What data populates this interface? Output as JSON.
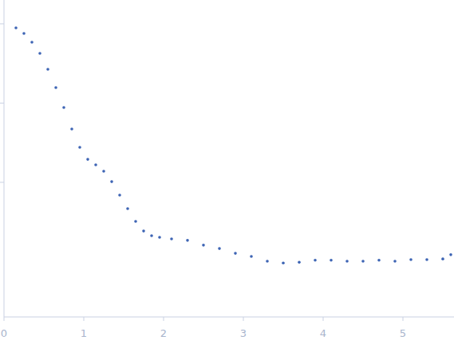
{
  "chart_data": {
    "type": "scatter",
    "x": [
      0.15,
      0.25,
      0.35,
      0.45,
      0.55,
      0.65,
      0.75,
      0.85,
      0.95,
      1.05,
      1.15,
      1.25,
      1.35,
      1.45,
      1.55,
      1.65,
      1.75,
      1.85,
      1.95,
      2.1,
      2.3,
      2.5,
      2.7,
      2.9,
      3.1,
      3.3,
      3.5,
      3.7,
      3.9,
      4.1,
      4.3,
      4.5,
      4.7,
      4.9,
      5.1,
      5.3,
      5.5,
      5.6
    ],
    "series": [
      {
        "color": "#3d64b4",
        "marker": "circle",
        "values": [
          0.889,
          0.757,
          0.586,
          0.425,
          0.267,
          0.157,
          0.0879,
          0.0471,
          0.0277,
          0.0195,
          0.0166,
          0.0138,
          0.0102,
          0.0069,
          0.00466,
          0.00321,
          0.00243,
          0.00212,
          0.00202,
          0.00193,
          0.00185,
          0.00161,
          0.00146,
          0.00127,
          0.00116,
          0.00101,
          0.00096,
          0.00098,
          0.00104,
          0.00104,
          0.00101,
          0.00101,
          0.00104,
          0.00101,
          0.00106,
          0.00106,
          0.00108,
          0.00122
        ]
      }
    ],
    "xlim": [
      0,
      5.64
    ],
    "xticks": [
      0,
      1,
      2,
      3,
      4,
      5
    ],
    "ylim": [
      0.0002,
      2
    ],
    "yticks": [
      1,
      0.1,
      0.01
    ],
    "log": "y",
    "grid": false,
    "tick_labels": "x"
  }
}
